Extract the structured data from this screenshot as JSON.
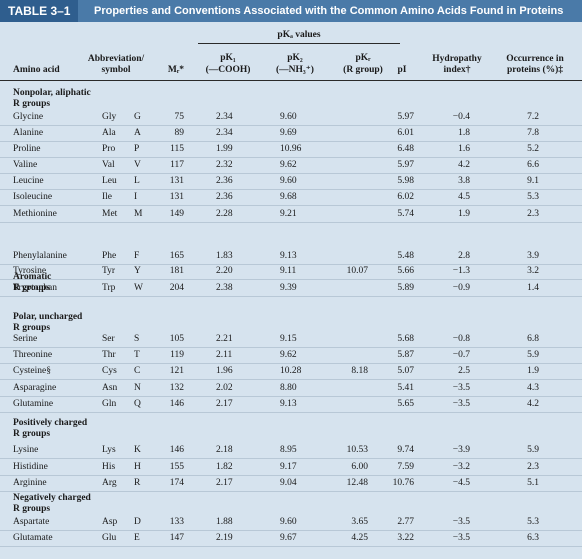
{
  "title": {
    "number": "TABLE 3–1",
    "text": "Properties and Conventions Associated with the Common Amino Acids Found in Proteins"
  },
  "headers": {
    "pka_values": "pKₐ values",
    "amino_acid": "Amino acid",
    "abbrev_1": "Abbreviation/",
    "abbrev_2": "symbol",
    "mr": "Mᵣ*",
    "pk1_1": "pK₁",
    "pk1_2": "(—COOH)",
    "pk2_1": "pK₂",
    "pk2_2": "(—NH₃⁺)",
    "pkr_1": "pKᵣ",
    "pkr_2": "(R group)",
    "pi": "pI",
    "hydro_1": "Hydropathy",
    "hydro_2": "index†",
    "occ_1": "Occurrence in",
    "occ_2": "proteins (%)‡"
  },
  "groups": [
    {
      "label_1": "Nonpolar, aliphatic",
      "label_2": "R groups",
      "rows": [
        {
          "name": "Glycine",
          "abbr": "Gly",
          "sym": "G",
          "mr": "75",
          "pk1": "2.34",
          "pk2": "9.60",
          "pkr": "",
          "pi": "5.97",
          "hydro": "−0.4",
          "occ": "7.2"
        },
        {
          "name": "Alanine",
          "abbr": "Ala",
          "sym": "A",
          "mr": "89",
          "pk1": "2.34",
          "pk2": "9.69",
          "pkr": "",
          "pi": "6.01",
          "hydro": "1.8",
          "occ": "7.8"
        },
        {
          "name": "Proline",
          "abbr": "Pro",
          "sym": "P",
          "mr": "115",
          "pk1": "1.99",
          "pk2": "10.96",
          "pkr": "",
          "pi": "6.48",
          "hydro": "1.6",
          "occ": "5.2"
        },
        {
          "name": "Valine",
          "abbr": "Val",
          "sym": "V",
          "mr": "117",
          "pk1": "2.32",
          "pk2": "9.62",
          "pkr": "",
          "pi": "5.97",
          "hydro": "4.2",
          "occ": "6.6"
        },
        {
          "name": "Leucine",
          "abbr": "Leu",
          "sym": "L",
          "mr": "131",
          "pk1": "2.36",
          "pk2": "9.60",
          "pkr": "",
          "pi": "5.98",
          "hydro": "3.8",
          "occ": "9.1"
        },
        {
          "name": "Isoleucine",
          "abbr": "Ile",
          "sym": "I",
          "mr": "131",
          "pk1": "2.36",
          "pk2": "9.68",
          "pkr": "",
          "pi": "6.02",
          "hydro": "4.5",
          "occ": "5.3"
        },
        {
          "name": "Methionine",
          "abbr": "Met",
          "sym": "M",
          "mr": "149",
          "pk1": "2.28",
          "pk2": "9.21",
          "pkr": "",
          "pi": "5.74",
          "hydro": "1.9",
          "occ": "2.3"
        }
      ]
    },
    {
      "label_1": "Aromatic",
      "label_2": "R groups",
      "rows": [
        {
          "name": "Phenylalanine",
          "abbr": "Phe",
          "sym": "F",
          "mr": "165",
          "pk1": "1.83",
          "pk2": "9.13",
          "pkr": "",
          "pi": "5.48",
          "hydro": "2.8",
          "occ": "3.9"
        },
        {
          "name": "Tyrosine",
          "abbr": "Tyr",
          "sym": "Y",
          "mr": "181",
          "pk1": "2.20",
          "pk2": "9.11",
          "pkr": "10.07",
          "pi": "5.66",
          "hydro": "−1.3",
          "occ": "3.2"
        },
        {
          "name": "Tryptophan",
          "abbr": "Trp",
          "sym": "W",
          "mr": "204",
          "pk1": "2.38",
          "pk2": "9.39",
          "pkr": "",
          "pi": "5.89",
          "hydro": "−0.9",
          "occ": "1.4"
        }
      ]
    },
    {
      "label_1": "Polar, uncharged",
      "label_2": "R groups",
      "rows": [
        {
          "name": "Serine",
          "abbr": "Ser",
          "sym": "S",
          "mr": "105",
          "pk1": "2.21",
          "pk2": "9.15",
          "pkr": "",
          "pi": "5.68",
          "hydro": "−0.8",
          "occ": "6.8"
        },
        {
          "name": "Threonine",
          "abbr": "Thr",
          "sym": "T",
          "mr": "119",
          "pk1": "2.11",
          "pk2": "9.62",
          "pkr": "",
          "pi": "5.87",
          "hydro": "−0.7",
          "occ": "5.9"
        },
        {
          "name": "Cysteine§",
          "abbr": "Cys",
          "sym": "C",
          "mr": "121",
          "pk1": "1.96",
          "pk2": "10.28",
          "pkr": "8.18",
          "pi": "5.07",
          "hydro": "2.5",
          "occ": "1.9"
        },
        {
          "name": "Asparagine",
          "abbr": "Asn",
          "sym": "N",
          "mr": "132",
          "pk1": "2.02",
          "pk2": "8.80",
          "pkr": "",
          "pi": "5.41",
          "hydro": "−3.5",
          "occ": "4.3"
        },
        {
          "name": "Glutamine",
          "abbr": "Gln",
          "sym": "Q",
          "mr": "146",
          "pk1": "2.17",
          "pk2": "9.13",
          "pkr": "",
          "pi": "5.65",
          "hydro": "−3.5",
          "occ": "4.2"
        }
      ]
    },
    {
      "label_1": "Positively charged",
      "label_2": "R groups",
      "rows": [
        {
          "name": "Lysine",
          "abbr": "Lys",
          "sym": "K",
          "mr": "146",
          "pk1": "2.18",
          "pk2": "8.95",
          "pkr": "10.53",
          "pi": "9.74",
          "hydro": "−3.9",
          "occ": "5.9"
        },
        {
          "name": "Histidine",
          "abbr": "His",
          "sym": "H",
          "mr": "155",
          "pk1": "1.82",
          "pk2": "9.17",
          "pkr": "6.00",
          "pi": "7.59",
          "hydro": "−3.2",
          "occ": "2.3"
        },
        {
          "name": "Arginine",
          "abbr": "Arg",
          "sym": "R",
          "mr": "174",
          "pk1": "2.17",
          "pk2": "9.04",
          "pkr": "12.48",
          "pi": "10.76",
          "hydro": "−4.5",
          "occ": "5.1"
        }
      ]
    },
    {
      "label_1": "Negatively charged",
      "label_2": "R groups",
      "rows": [
        {
          "name": "Aspartate",
          "abbr": "Asp",
          "sym": "D",
          "mr": "133",
          "pk1": "1.88",
          "pk2": "9.60",
          "pkr": "3.65",
          "pi": "2.77",
          "hydro": "−3.5",
          "occ": "5.3"
        },
        {
          "name": "Glutamate",
          "abbr": "Glu",
          "sym": "E",
          "mr": "147",
          "pk1": "2.19",
          "pk2": "9.67",
          "pkr": "4.25",
          "pi": "3.22",
          "hydro": "−3.5",
          "occ": "6.3"
        }
      ]
    }
  ]
}
